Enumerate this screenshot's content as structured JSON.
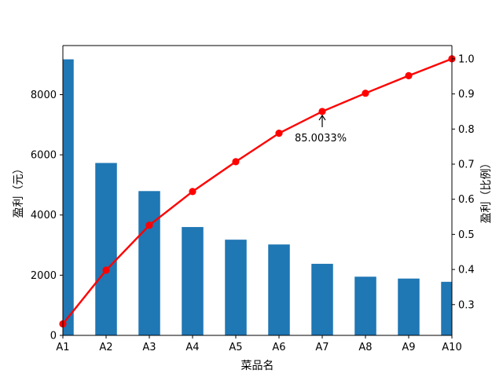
{
  "chart_data": {
    "type": "bar",
    "title": "",
    "xlabel": "菜品名",
    "ylabel_left": "盈利（元）",
    "ylabel_right": "盈利（比例）",
    "categories": [
      "A1",
      "A2",
      "A3",
      "A4",
      "A5",
      "A6",
      "A7",
      "A8",
      "A9",
      "A10"
    ],
    "series": [
      {
        "kind": "bar",
        "axis": "left",
        "color": "#1f77b4",
        "values": [
          9173,
          5729,
          4795,
          3600,
          3180,
          3021,
          2378,
          1950,
          1888,
          1780
        ]
      },
      {
        "kind": "line",
        "axis": "right",
        "color": "#ff0000",
        "marker": "circle",
        "values": [
          0.245,
          0.398,
          0.526,
          0.622,
          0.707,
          0.788,
          0.850033,
          0.902,
          0.952,
          1.0
        ]
      }
    ],
    "ylim_left": [
      0,
      9631
    ],
    "yticks_left": [
      "0",
      "2000",
      "4000",
      "6000",
      "8000"
    ],
    "yticks_left_values": [
      0,
      2000,
      4000,
      6000,
      8000
    ],
    "ylim_right": [
      0.2123,
      1.0378
    ],
    "yticks_right": [
      "0.3",
      "0.4",
      "0.5",
      "0.6",
      "0.7",
      "0.8",
      "0.9",
      "1.0"
    ],
    "yticks_right_values": [
      0.3,
      0.4,
      0.5,
      0.6,
      0.7,
      0.8,
      0.9,
      1.0
    ],
    "annotation": {
      "text": "85.0033%",
      "category": "A7",
      "value": 0.850033
    },
    "grid": false,
    "legend": "none"
  }
}
